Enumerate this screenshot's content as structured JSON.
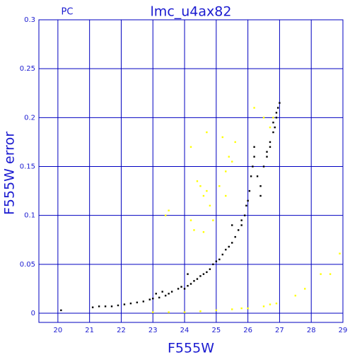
{
  "chart_data": {
    "type": "scatter",
    "title": "lmc_u4ax82",
    "subtitle": "PC",
    "x_label": "F555W",
    "y_label": "F555W error",
    "xlim": [
      19.4,
      29
    ],
    "ylim": [
      -0.0094,
      0.3
    ],
    "xticks": [
      20,
      21,
      22,
      23,
      24,
      25,
      26,
      27,
      28,
      29
    ],
    "yticks": [
      0,
      0.05,
      0.1,
      0.15,
      0.2,
      0.25,
      0.3
    ],
    "grid": true,
    "grid_color": "#0000c0",
    "text_color": "#1a1ad0",
    "series": [
      {
        "color": "#000000",
        "x": [
          20.1,
          21.1,
          21.3,
          21.5,
          21.7,
          21.9,
          22.1,
          22.3,
          22.5,
          22.7,
          22.9,
          23.0,
          23.1,
          23.2,
          23.4,
          23.5,
          23.6,
          23.8,
          23.9,
          24.0,
          24.1,
          24.2,
          24.3,
          24.4,
          24.5,
          24.6,
          24.7,
          24.8,
          24.9,
          25.0,
          25.1,
          25.2,
          25.3,
          25.4,
          25.5,
          25.6,
          25.7,
          25.8,
          25.9,
          25.95,
          26.0,
          26.05,
          26.1,
          26.15,
          26.2,
          26.3,
          26.4,
          26.5,
          26.6,
          26.7,
          26.8,
          26.85,
          26.9,
          26.95,
          27.0,
          26.9,
          26.8,
          26.7,
          26.6,
          24.1,
          23.3,
          25.5,
          26.2,
          25.8,
          26.4
        ],
        "y": [
          0.003,
          0.006,
          0.007,
          0.007,
          0.007,
          0.008,
          0.009,
          0.01,
          0.011,
          0.012,
          0.014,
          0.015,
          0.02,
          0.016,
          0.018,
          0.02,
          0.022,
          0.025,
          0.027,
          0.025,
          0.028,
          0.03,
          0.033,
          0.035,
          0.038,
          0.04,
          0.042,
          0.045,
          0.05,
          0.053,
          0.055,
          0.06,
          0.065,
          0.068,
          0.072,
          0.078,
          0.085,
          0.09,
          0.1,
          0.11,
          0.115,
          0.125,
          0.14,
          0.15,
          0.16,
          0.14,
          0.13,
          0.15,
          0.16,
          0.175,
          0.185,
          0.19,
          0.2,
          0.21,
          0.215,
          0.205,
          0.195,
          0.17,
          0.165,
          0.04,
          0.022,
          0.09,
          0.17,
          0.095,
          0.12
        ]
      },
      {
        "color": "#ffff00",
        "x": [
          23.5,
          23.4,
          24.7,
          24.2,
          24.4,
          24.5,
          24.6,
          24.7,
          24.8,
          24.9,
          24.3,
          24.6,
          24.2,
          25.3,
          25.4,
          25.5,
          25.3,
          25.2,
          25.6,
          25.1,
          26.5,
          26.2,
          26.7,
          26.8,
          23.5,
          24.0,
          24.5,
          25.0,
          25.5,
          26.0,
          26.5,
          26.9,
          27.5,
          27.8,
          28.3,
          28.6,
          28.9,
          23.0,
          26.7,
          25.8
        ],
        "y": [
          0.105,
          0.1,
          0.185,
          0.17,
          0.135,
          0.13,
          0.12,
          0.125,
          0.11,
          0.095,
          0.085,
          0.083,
          0.095,
          0.12,
          0.16,
          0.155,
          0.145,
          0.18,
          0.175,
          0.13,
          0.2,
          0.21,
          0.19,
          0.2,
          0.001,
          0.001,
          0.002,
          0.003,
          0.004,
          0.005,
          0.007,
          0.01,
          0.018,
          0.025,
          0.04,
          0.04,
          0.061,
          0.001,
          0.009,
          0.005
        ]
      }
    ]
  }
}
